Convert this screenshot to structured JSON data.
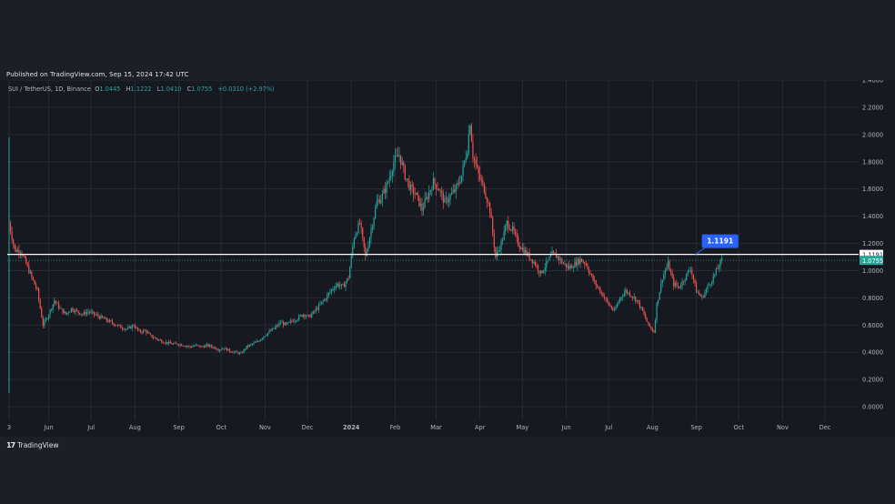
{
  "header": {
    "published": "Published on TradingView.com, Sep 15, 2024 17:42 UTC"
  },
  "legend": {
    "symbol": "SUI / TetherUS, 1D, Binance",
    "o_label": "O",
    "o_value": "1.0445",
    "h_label": "H",
    "h_value": "1.1222",
    "l_label": "L",
    "l_value": "1.0410",
    "c_label": "C",
    "c_value": "1.0755",
    "change": "+0.0310 (+2.97%)"
  },
  "footer": {
    "brand": "TradingView"
  },
  "colors": {
    "up": "#26a69a",
    "down": "#ef5350",
    "grid": "#262a35",
    "level_line": "#ffffff",
    "callout": "#2962ff",
    "price_tag": "#26a69a"
  },
  "chart_data": {
    "type": "candlestick",
    "title": "SUI / TetherUS, 1D, Binance",
    "ylim": [
      -0.1,
      2.4
    ],
    "y_ticks": [
      "2.4000",
      "2.2000",
      "2.0000",
      "1.8000",
      "1.6000",
      "1.4000",
      "1.2000",
      "1.0000",
      "0.8000",
      "0.6000",
      "0.4000",
      "0.2000",
      "0.0000"
    ],
    "y_tick_values": [
      2.4,
      2.2,
      2.0,
      1.8,
      1.6,
      1.4,
      1.2,
      1.0,
      0.8,
      0.6,
      0.4,
      0.2,
      0.0
    ],
    "x_ticks": [
      "3",
      "Jun",
      "Jul",
      "Aug",
      "Sep",
      "Oct",
      "Nov",
      "Dec",
      "2024",
      "Feb",
      "Mar",
      "Apr",
      "May",
      "Jun",
      "Jul",
      "Aug",
      "Sep",
      "Oct",
      "Nov",
      "Dec"
    ],
    "x_tick_days": [
      0,
      28,
      58,
      89,
      120,
      150,
      181,
      211,
      242,
      273,
      302,
      333,
      363,
      394,
      424,
      455,
      486,
      516,
      547,
      577
    ],
    "x_range_days": [
      0,
      590
    ],
    "horizontal_level": 1.1191,
    "level_label": "1.1191",
    "last_price": 1.0755,
    "last_price_label": "1.0755",
    "level_tag_label": "1.1191",
    "price_path": [
      [
        0,
        1.35
      ],
      [
        4,
        1.15
      ],
      [
        8,
        1.15
      ],
      [
        12,
        1.05
      ],
      [
        16,
        0.95
      ],
      [
        20,
        0.85
      ],
      [
        24,
        0.6
      ],
      [
        28,
        0.68
      ],
      [
        32,
        0.78
      ],
      [
        36,
        0.72
      ],
      [
        40,
        0.68
      ],
      [
        44,
        0.72
      ],
      [
        48,
        0.7
      ],
      [
        52,
        0.68
      ],
      [
        56,
        0.7
      ],
      [
        60,
        0.68
      ],
      [
        64,
        0.66
      ],
      [
        68,
        0.64
      ],
      [
        72,
        0.62
      ],
      [
        76,
        0.6
      ],
      [
        80,
        0.58
      ],
      [
        84,
        0.57
      ],
      [
        88,
        0.6
      ],
      [
        92,
        0.55
      ],
      [
        96,
        0.56
      ],
      [
        100,
        0.52
      ],
      [
        104,
        0.5
      ],
      [
        108,
        0.48
      ],
      [
        112,
        0.47
      ],
      [
        116,
        0.46
      ],
      [
        120,
        0.46
      ],
      [
        124,
        0.45
      ],
      [
        128,
        0.44
      ],
      [
        132,
        0.45
      ],
      [
        136,
        0.44
      ],
      [
        140,
        0.45
      ],
      [
        144,
        0.44
      ],
      [
        148,
        0.42
      ],
      [
        152,
        0.43
      ],
      [
        156,
        0.41
      ],
      [
        160,
        0.4
      ],
      [
        164,
        0.39
      ],
      [
        168,
        0.44
      ],
      [
        172,
        0.46
      ],
      [
        176,
        0.48
      ],
      [
        180,
        0.52
      ],
      [
        184,
        0.55
      ],
      [
        188,
        0.58
      ],
      [
        192,
        0.62
      ],
      [
        196,
        0.6
      ],
      [
        200,
        0.63
      ],
      [
        204,
        0.65
      ],
      [
        208,
        0.68
      ],
      [
        212,
        0.66
      ],
      [
        216,
        0.7
      ],
      [
        220,
        0.75
      ],
      [
        224,
        0.8
      ],
      [
        228,
        0.86
      ],
      [
        232,
        0.9
      ],
      [
        236,
        0.88
      ],
      [
        240,
        0.95
      ],
      [
        244,
        1.25
      ],
      [
        248,
        1.35
      ],
      [
        252,
        1.1
      ],
      [
        256,
        1.3
      ],
      [
        260,
        1.5
      ],
      [
        264,
        1.55
      ],
      [
        268,
        1.65
      ],
      [
        272,
        1.8
      ],
      [
        276,
        1.85
      ],
      [
        280,
        1.7
      ],
      [
        284,
        1.6
      ],
      [
        288,
        1.55
      ],
      [
        292,
        1.45
      ],
      [
        296,
        1.55
      ],
      [
        300,
        1.65
      ],
      [
        304,
        1.6
      ],
      [
        308,
        1.5
      ],
      [
        312,
        1.55
      ],
      [
        316,
        1.6
      ],
      [
        320,
        1.7
      ],
      [
        324,
        1.9
      ],
      [
        326,
        2.1
      ],
      [
        328,
        1.85
      ],
      [
        332,
        1.7
      ],
      [
        336,
        1.6
      ],
      [
        340,
        1.45
      ],
      [
        344,
        1.1
      ],
      [
        348,
        1.2
      ],
      [
        352,
        1.35
      ],
      [
        356,
        1.3
      ],
      [
        360,
        1.2
      ],
      [
        364,
        1.15
      ],
      [
        368,
        1.1
      ],
      [
        372,
        1.05
      ],
      [
        376,
        0.98
      ],
      [
        380,
        1.05
      ],
      [
        384,
        1.12
      ],
      [
        388,
        1.1
      ],
      [
        392,
        1.05
      ],
      [
        396,
        1.02
      ],
      [
        400,
        1.05
      ],
      [
        404,
        1.08
      ],
      [
        408,
        1.05
      ],
      [
        412,
        0.95
      ],
      [
        416,
        0.88
      ],
      [
        420,
        0.82
      ],
      [
        424,
        0.75
      ],
      [
        428,
        0.7
      ],
      [
        432,
        0.8
      ],
      [
        436,
        0.85
      ],
      [
        440,
        0.82
      ],
      [
        444,
        0.78
      ],
      [
        448,
        0.7
      ],
      [
        452,
        0.6
      ],
      [
        456,
        0.55
      ],
      [
        458,
        0.75
      ],
      [
        462,
        0.95
      ],
      [
        466,
        1.05
      ],
      [
        470,
        0.9
      ],
      [
        474,
        0.88
      ],
      [
        478,
        0.95
      ],
      [
        482,
        1.02
      ],
      [
        486,
        0.85
      ],
      [
        490,
        0.8
      ],
      [
        494,
        0.88
      ],
      [
        498,
        0.95
      ],
      [
        502,
        1.04
      ],
      [
        504,
        1.0755
      ]
    ]
  }
}
